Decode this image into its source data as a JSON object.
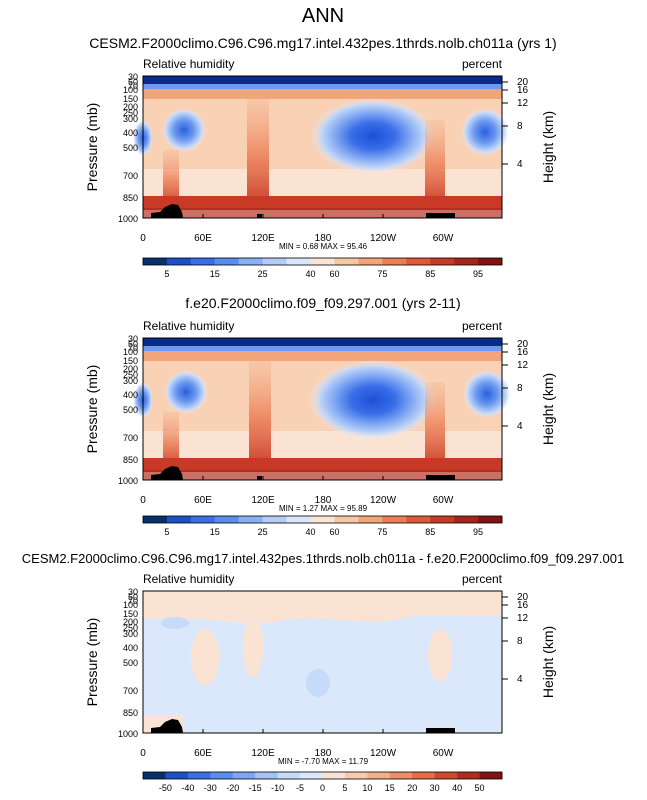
{
  "page_title": "ANN",
  "chart_data": [
    {
      "type": "heatmap",
      "title": "CESM2.F2000climo.C96.C96.mg17.intel.432pes.1thrds.nolb.ch011a (yrs 1)",
      "left_label": "Relative humidity",
      "right_label": "percent",
      "ylabel": "Pressure (mb)",
      "ylabel_right": "Height (km)",
      "x_ticks": [
        "0",
        "60E",
        "120E",
        "180",
        "120W",
        "60W"
      ],
      "y_ticks": [
        "30",
        "50",
        "70",
        "100",
        "150",
        "200",
        "250",
        "300",
        "400",
        "500",
        "700",
        "850",
        "1000"
      ],
      "y_ticks_right": [
        "20",
        "16",
        "12",
        "8",
        "4"
      ],
      "stats": "MIN =  0.68  MAX = 95.46",
      "min": 0.68,
      "max": 95.46,
      "colorbar_levels": [
        "5",
        "15",
        "25",
        "40",
        "60",
        "75",
        "85",
        "95"
      ],
      "colorbar_colors": [
        "#08306b",
        "#1f4fc8",
        "#3a6ee8",
        "#5b8def",
        "#88b0f4",
        "#b3cdf8",
        "#d9e6fb",
        "#fbe6d6",
        "#f7c7a5",
        "#f2a47a",
        "#ec7d55",
        "#e1583a",
        "#c83a26",
        "#a8241a",
        "#7f1410"
      ]
    },
    {
      "type": "heatmap",
      "title": "f.e20.F2000climo.f09_f09.297.001 (yrs 2-11)",
      "left_label": "Relative humidity",
      "right_label": "percent",
      "ylabel": "Pressure (mb)",
      "ylabel_right": "Height (km)",
      "x_ticks": [
        "0",
        "60E",
        "120E",
        "180",
        "120W",
        "60W"
      ],
      "y_ticks": [
        "30",
        "50",
        "70",
        "100",
        "150",
        "200",
        "250",
        "300",
        "400",
        "500",
        "700",
        "850",
        "1000"
      ],
      "y_ticks_right": [
        "20",
        "16",
        "12",
        "8",
        "4"
      ],
      "stats": "MIN =  1.27  MAX = 95.89",
      "min": 1.27,
      "max": 95.89,
      "colorbar_levels": [
        "5",
        "15",
        "25",
        "40",
        "60",
        "75",
        "85",
        "95"
      ],
      "colorbar_colors": [
        "#08306b",
        "#1f4fc8",
        "#3a6ee8",
        "#5b8def",
        "#88b0f4",
        "#b3cdf8",
        "#d9e6fb",
        "#fbe6d6",
        "#f7c7a5",
        "#f2a47a",
        "#ec7d55",
        "#e1583a",
        "#c83a26",
        "#a8241a",
        "#7f1410"
      ]
    },
    {
      "type": "heatmap",
      "title": "CESM2.F2000climo.C96.C96.mg17.intel.432pes.1thrds.nolb.ch011a - f.e20.F2000climo.f09_f09.297.001",
      "left_label": "Relative humidity",
      "right_label": "percent",
      "ylabel": "Pressure (mb)",
      "ylabel_right": "Height (km)",
      "x_ticks": [
        "0",
        "60E",
        "120E",
        "180",
        "120W",
        "60W"
      ],
      "y_ticks": [
        "30",
        "50",
        "70",
        "100",
        "150",
        "200",
        "250",
        "300",
        "400",
        "500",
        "700",
        "850",
        "1000"
      ],
      "y_ticks_right": [
        "20",
        "16",
        "12",
        "8",
        "4"
      ],
      "stats": "MIN = -7.70  MAX = 11.79",
      "min": -7.7,
      "max": 11.79,
      "colorbar_levels": [
        "-50",
        "-40",
        "-30",
        "-20",
        "-15",
        "-10",
        "-5",
        "0",
        "5",
        "10",
        "15",
        "20",
        "30",
        "40",
        "50"
      ],
      "colorbar_colors": [
        "#08306b",
        "#1f4fc8",
        "#3a6ee8",
        "#5b8def",
        "#7ea6f2",
        "#a3c2f6",
        "#c6daf9",
        "#dbe8fb",
        "#fbe3d3",
        "#f8cbb0",
        "#f4ae8a",
        "#ef8e66",
        "#e66c47",
        "#d4472d",
        "#b22b1e",
        "#7f1410"
      ]
    }
  ]
}
